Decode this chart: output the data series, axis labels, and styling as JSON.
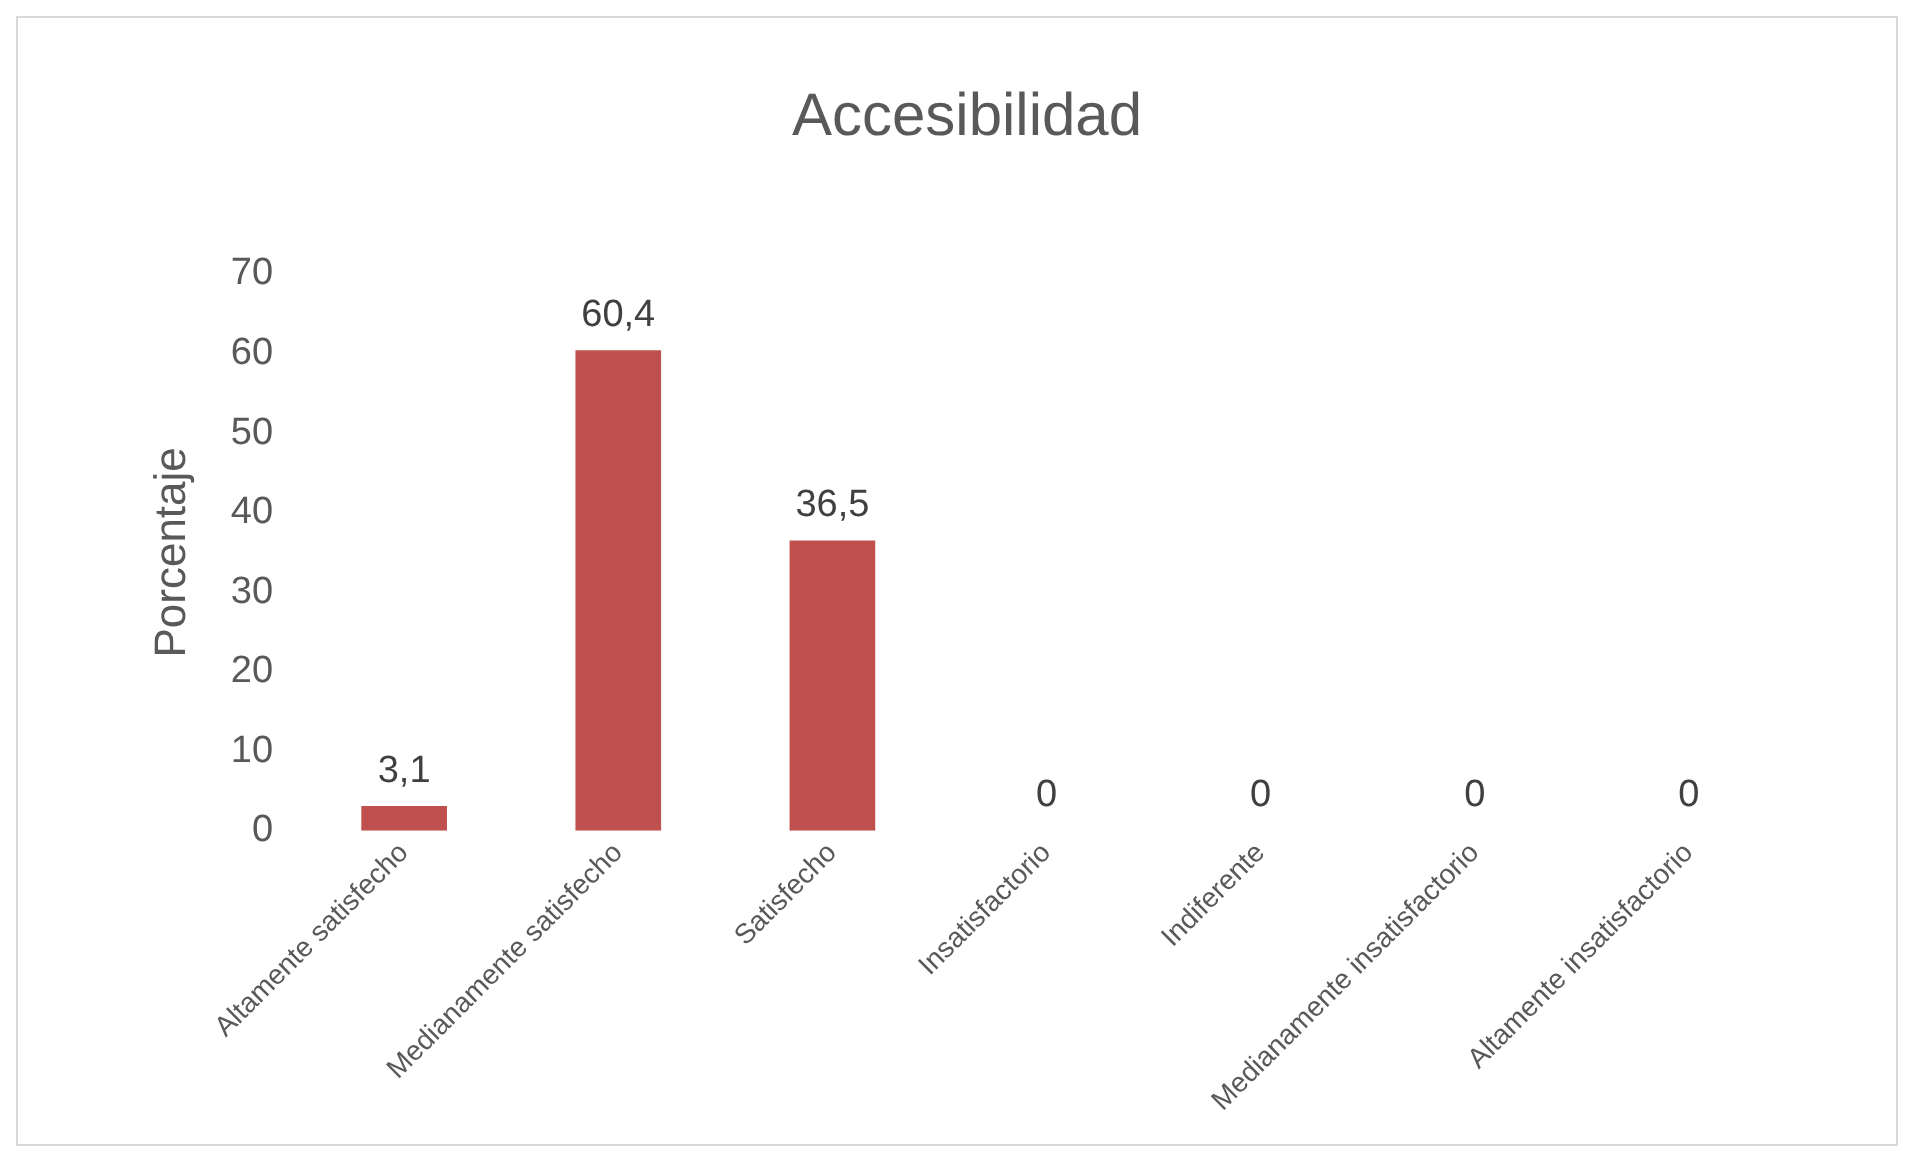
{
  "chart_data": {
    "type": "bar",
    "title": "Accesibilidad",
    "ylabel": "Porcentaje",
    "categories": [
      "Altamente satisfecho",
      "Medianamente satisfecho",
      "Satisfecho",
      "Insatisfactorio",
      "Indiferente",
      "Medianamente insatisfactorio",
      "Altamente insatisfactorio"
    ],
    "values": [
      3.1,
      60.4,
      36.5,
      0,
      0,
      0,
      0
    ],
    "value_labels": [
      "3,1",
      "60,4",
      "36,5",
      "0",
      "0",
      "0",
      "0"
    ],
    "color": "#c0504d",
    "ylim": [
      0,
      70
    ],
    "yticks": [
      0,
      10,
      20,
      30,
      40,
      50,
      60,
      70
    ],
    "grid": false,
    "legend": false
  }
}
